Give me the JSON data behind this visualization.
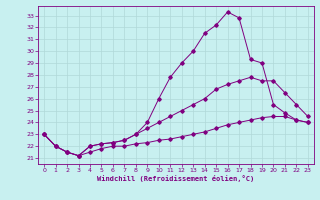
{
  "xlabel": "Windchill (Refroidissement éolien,°C)",
  "bg_color": "#c8f0f0",
  "grid_color": "#b0d8d8",
  "line_color": "#800080",
  "ylim": [
    20.5,
    33.8
  ],
  "xlim": [
    -0.5,
    23.5
  ],
  "yticks": [
    21,
    22,
    23,
    24,
    25,
    26,
    27,
    28,
    29,
    30,
    31,
    32,
    33
  ],
  "xticks": [
    0,
    1,
    2,
    3,
    4,
    5,
    6,
    7,
    8,
    9,
    10,
    11,
    12,
    13,
    14,
    15,
    16,
    17,
    18,
    19,
    20,
    21,
    22,
    23
  ],
  "series": [
    {
      "x": [
        0,
        1,
        2,
        3,
        4,
        5,
        6,
        7,
        8,
        9,
        10,
        11,
        12,
        13,
        14,
        15,
        16,
        17,
        18,
        19,
        20,
        21,
        22,
        23
      ],
      "y": [
        23.0,
        22.0,
        21.5,
        21.2,
        22.0,
        22.2,
        22.3,
        22.5,
        23.0,
        24.0,
        26.0,
        27.8,
        29.0,
        30.0,
        31.5,
        32.2,
        33.3,
        32.8,
        29.3,
        29.0,
        25.5,
        24.8,
        24.2,
        24.0
      ]
    },
    {
      "x": [
        0,
        1,
        2,
        3,
        4,
        5,
        6,
        7,
        8,
        9,
        10,
        11,
        12,
        13,
        14,
        15,
        16,
        17,
        18,
        19,
        20,
        21,
        22,
        23
      ],
      "y": [
        23.0,
        22.0,
        21.5,
        21.2,
        22.0,
        22.2,
        22.3,
        22.5,
        23.0,
        23.5,
        24.0,
        24.5,
        25.0,
        25.5,
        26.0,
        26.8,
        27.2,
        27.5,
        27.8,
        27.5,
        27.5,
        26.5,
        25.5,
        24.5
      ]
    },
    {
      "x": [
        0,
        1,
        2,
        3,
        4,
        5,
        6,
        7,
        8,
        9,
        10,
        11,
        12,
        13,
        14,
        15,
        16,
        17,
        18,
        19,
        20,
        21,
        22,
        23
      ],
      "y": [
        23.0,
        22.0,
        21.5,
        21.2,
        21.5,
        21.8,
        22.0,
        22.0,
        22.2,
        22.3,
        22.5,
        22.6,
        22.8,
        23.0,
        23.2,
        23.5,
        23.8,
        24.0,
        24.2,
        24.4,
        24.5,
        24.5,
        24.2,
        24.0
      ]
    }
  ]
}
